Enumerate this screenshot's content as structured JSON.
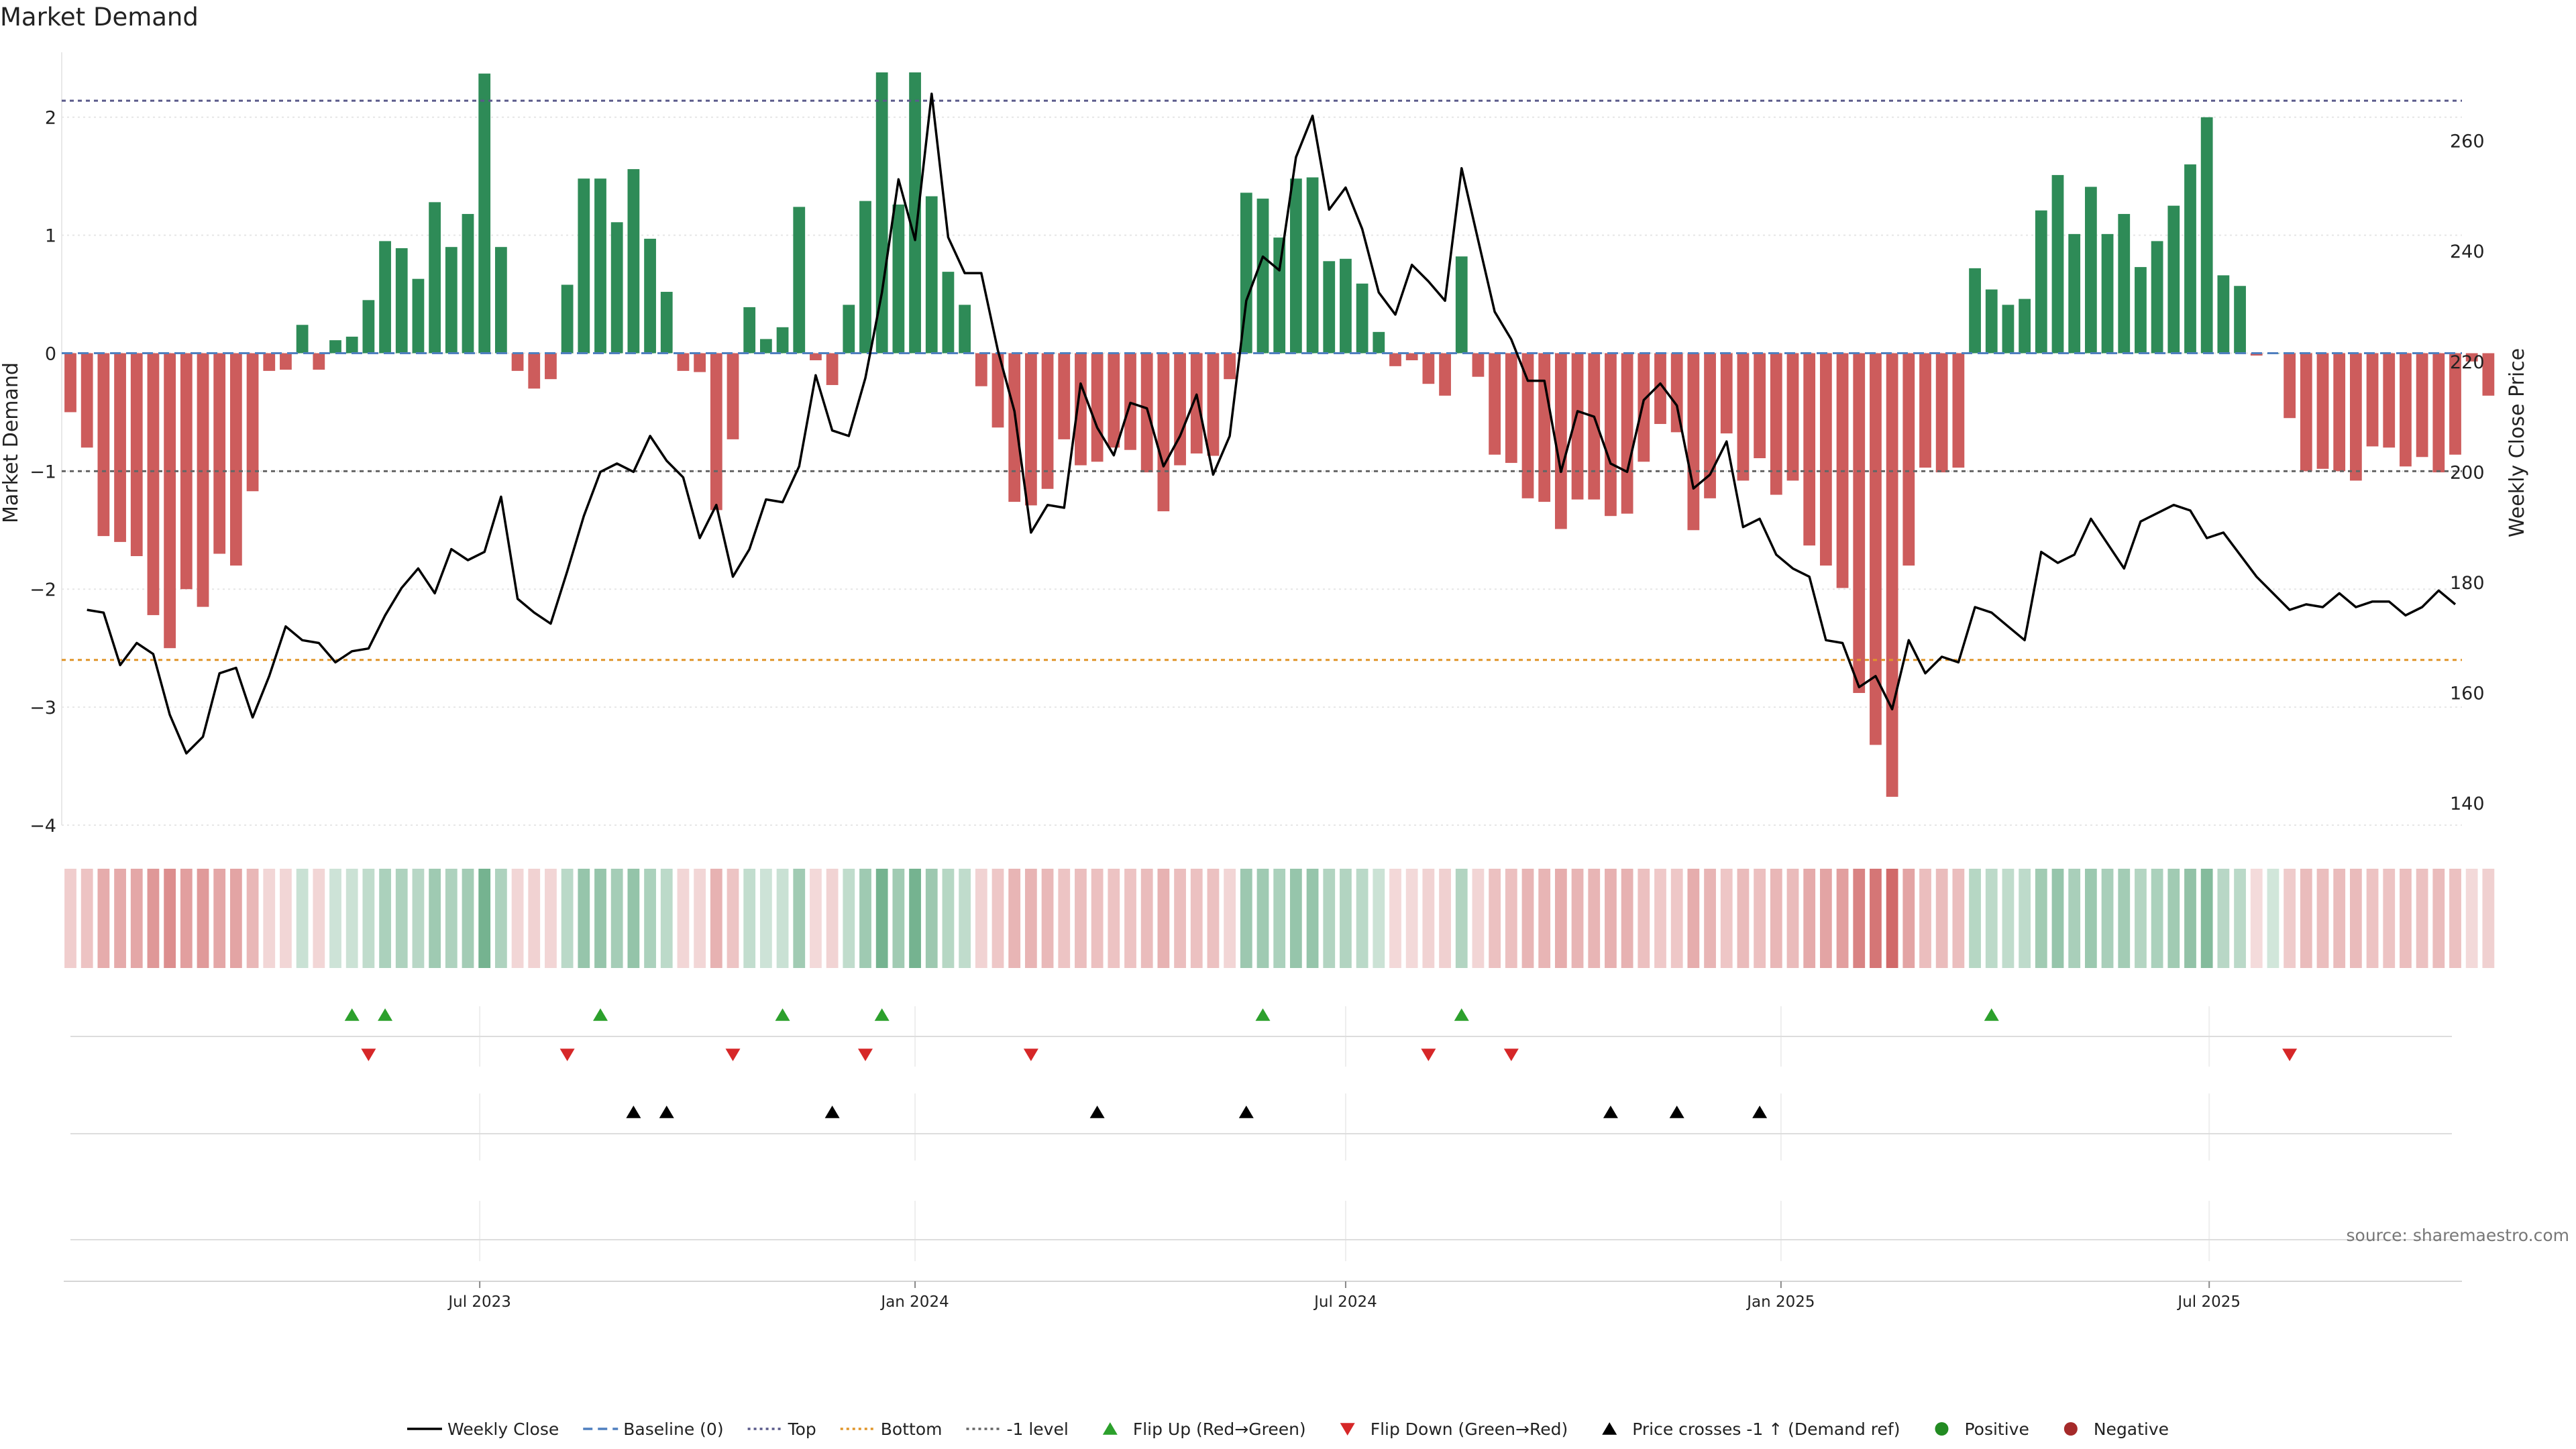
{
  "chart_data": {
    "type": "bar",
    "title": "Market Demand",
    "ylabel_left": "Market Demand",
    "ylabel_right": "Weekly Close Price",
    "source": "source: sharemaestro.com",
    "x_range": [
      "2023-01-09",
      "2025-10-13"
    ],
    "ylim_left": [
      -4.0,
      2.55
    ],
    "ylim_right": [
      136,
      276
    ],
    "left_ticks": [
      {
        "v": 2,
        "label": "2"
      },
      {
        "v": 1,
        "label": "1"
      },
      {
        "v": 0,
        "label": "0"
      },
      {
        "v": -1,
        "label": "−1"
      },
      {
        "v": -2,
        "label": "−2"
      },
      {
        "v": -3,
        "label": "−3"
      },
      {
        "v": -4,
        "label": "−4"
      }
    ],
    "right_ticks": [
      {
        "v": 260,
        "label": "260"
      },
      {
        "v": 240,
        "label": "240"
      },
      {
        "v": 220,
        "label": "220"
      },
      {
        "v": 200,
        "label": "200"
      },
      {
        "v": 180,
        "label": "180"
      },
      {
        "v": 160,
        "label": "160"
      },
      {
        "v": 140,
        "label": "140"
      }
    ],
    "x_ticks": [
      {
        "date": "2023-07-01",
        "label": "Jul 2023"
      },
      {
        "date": "2024-01-01",
        "label": "Jan 2024"
      },
      {
        "date": "2024-07-01",
        "label": "Jul 2024"
      },
      {
        "date": "2025-01-01",
        "label": "Jan 2025"
      },
      {
        "date": "2025-07-01",
        "label": "Jul 2025"
      }
    ],
    "reference_lines": [
      {
        "name": "Baseline (0)",
        "value": 0,
        "color": "#4f7fbf"
      },
      {
        "name": "Top",
        "value": 2.14,
        "color": "#5a5a8a"
      },
      {
        "name": "Bottom",
        "value": -2.6,
        "color": "#e0952a"
      },
      {
        "name": "-1 level",
        "value": -1,
        "color": "#666666"
      }
    ],
    "colors": {
      "positive": "#2e8b57",
      "negative": "#cd5c5c",
      "price": "#000000",
      "flip_up": "#2ca02c",
      "flip_down": "#d62728",
      "cross": "#000000",
      "positive_dot": "#228b22",
      "negative_dot": "#a52a2a"
    },
    "series": [
      {
        "name": "Weekly Close",
        "kind": "line",
        "axis": "right",
        "points": [
          [
            "2023-01-16",
            175
          ],
          [
            "2023-01-23",
            174.5
          ],
          [
            "2023-01-30",
            165
          ],
          [
            "2023-02-06",
            169
          ],
          [
            "2023-02-13",
            167
          ],
          [
            "2023-02-20",
            156
          ],
          [
            "2023-02-27",
            149
          ],
          [
            "2023-03-06",
            152
          ],
          [
            "2023-03-13",
            163.5
          ],
          [
            "2023-03-20",
            164.5
          ],
          [
            "2023-03-27",
            155.5
          ],
          [
            "2023-04-03",
            163
          ],
          [
            "2023-04-10",
            172
          ],
          [
            "2023-04-17",
            169.5
          ],
          [
            "2023-04-24",
            169
          ],
          [
            "2023-05-01",
            165.5
          ],
          [
            "2023-05-08",
            167.5
          ],
          [
            "2023-05-15",
            168
          ],
          [
            "2023-05-22",
            174
          ],
          [
            "2023-05-29",
            179
          ],
          [
            "2023-06-05",
            182.5
          ],
          [
            "2023-06-12",
            178
          ],
          [
            "2023-06-19",
            186
          ],
          [
            "2023-06-26",
            184
          ],
          [
            "2023-07-03",
            185.5
          ],
          [
            "2023-07-10",
            195.5
          ],
          [
            "2023-07-17",
            177
          ],
          [
            "2023-07-24",
            174.5
          ],
          [
            "2023-07-31",
            172.5
          ],
          [
            "2023-08-07",
            182
          ],
          [
            "2023-08-14",
            192
          ],
          [
            "2023-08-21",
            200
          ],
          [
            "2023-08-28",
            201.5
          ],
          [
            "2023-09-04",
            200
          ],
          [
            "2023-09-11",
            206.5
          ],
          [
            "2023-09-18",
            202
          ],
          [
            "2023-09-25",
            199
          ],
          [
            "2023-10-02",
            188
          ],
          [
            "2023-10-09",
            194
          ],
          [
            "2023-10-16",
            181
          ],
          [
            "2023-10-23",
            186
          ],
          [
            "2023-10-30",
            195
          ],
          [
            "2023-11-06",
            194.5
          ],
          [
            "2023-11-13",
            201
          ],
          [
            "2023-11-20",
            217.5
          ],
          [
            "2023-11-27",
            207.5
          ],
          [
            "2023-12-04",
            206.5
          ],
          [
            "2023-12-11",
            217
          ],
          [
            "2023-12-18",
            232.5
          ],
          [
            "2023-12-25",
            253
          ],
          [
            "2024-01-01",
            242
          ],
          [
            "2024-01-08",
            268.5
          ],
          [
            "2024-01-15",
            242.5
          ],
          [
            "2024-01-22",
            236
          ],
          [
            "2024-01-29",
            236
          ],
          [
            "2024-02-05",
            222
          ],
          [
            "2024-02-12",
            211
          ],
          [
            "2024-02-19",
            189
          ],
          [
            "2024-02-26",
            194
          ],
          [
            "2024-03-04",
            193.5
          ],
          [
            "2024-03-11",
            216
          ],
          [
            "2024-03-18",
            208
          ],
          [
            "2024-03-25",
            203
          ],
          [
            "2024-04-01",
            212.5
          ],
          [
            "2024-04-08",
            211.5
          ],
          [
            "2024-04-15",
            201
          ],
          [
            "2024-04-22",
            206.5
          ],
          [
            "2024-04-29",
            214
          ],
          [
            "2024-05-06",
            199.5
          ],
          [
            "2024-05-13",
            206.5
          ],
          [
            "2024-05-20",
            231
          ],
          [
            "2024-05-27",
            239
          ],
          [
            "2024-06-03",
            236.5
          ],
          [
            "2024-06-10",
            257
          ],
          [
            "2024-06-17",
            264.5
          ],
          [
            "2024-06-24",
            247.5
          ],
          [
            "2024-07-01",
            251.5
          ],
          [
            "2024-07-08",
            244
          ],
          [
            "2024-07-15",
            232.5
          ],
          [
            "2024-07-22",
            228.5
          ],
          [
            "2024-07-29",
            237.5
          ],
          [
            "2024-08-05",
            234.5
          ],
          [
            "2024-08-12",
            231
          ],
          [
            "2024-08-19",
            255
          ],
          [
            "2024-08-26",
            242
          ],
          [
            "2024-09-02",
            229
          ],
          [
            "2024-09-09",
            224
          ],
          [
            "2024-09-16",
            216.5
          ],
          [
            "2024-09-23",
            216.5
          ],
          [
            "2024-09-30",
            200
          ],
          [
            "2024-10-07",
            211
          ],
          [
            "2024-10-14",
            210
          ],
          [
            "2024-10-21",
            201.5
          ],
          [
            "2024-10-28",
            200
          ],
          [
            "2024-11-04",
            213
          ],
          [
            "2024-11-11",
            216
          ],
          [
            "2024-11-18",
            212
          ],
          [
            "2024-11-25",
            197
          ],
          [
            "2024-12-02",
            199.5
          ],
          [
            "2024-12-09",
            205.5
          ],
          [
            "2024-12-16",
            190
          ],
          [
            "2024-12-23",
            191.5
          ],
          [
            "2024-12-30",
            185
          ],
          [
            "2025-01-06",
            182.5
          ],
          [
            "2025-01-13",
            181
          ],
          [
            "2025-01-20",
            169.5
          ],
          [
            "2025-01-27",
            169
          ],
          [
            "2025-02-03",
            161
          ],
          [
            "2025-02-10",
            163
          ],
          [
            "2025-02-17",
            157
          ],
          [
            "2025-02-24",
            169.5
          ],
          [
            "2025-03-03",
            163.5
          ],
          [
            "2025-03-10",
            166.5
          ],
          [
            "2025-03-17",
            165.5
          ],
          [
            "2025-03-24",
            175.5
          ],
          [
            "2025-03-31",
            174.5
          ],
          [
            "2025-04-07",
            172
          ],
          [
            "2025-04-14",
            169.5
          ],
          [
            "2025-04-21",
            185.5
          ],
          [
            "2025-04-28",
            183.5
          ],
          [
            "2025-05-05",
            185
          ],
          [
            "2025-05-12",
            191.5
          ],
          [
            "2025-05-19",
            187
          ],
          [
            "2025-05-26",
            182.5
          ],
          [
            "2025-06-02",
            191
          ],
          [
            "2025-06-09",
            192.5
          ],
          [
            "2025-06-16",
            194
          ],
          [
            "2025-06-23",
            193
          ],
          [
            "2025-06-30",
            188
          ],
          [
            "2025-07-07",
            189
          ],
          [
            "2025-07-14",
            185
          ],
          [
            "2025-07-21",
            181
          ],
          [
            "2025-07-28",
            178
          ],
          [
            "2025-08-04",
            175
          ],
          [
            "2025-08-11",
            176
          ],
          [
            "2025-08-18",
            175.5
          ],
          [
            "2025-08-25",
            178
          ],
          [
            "2025-09-01",
            175.5
          ],
          [
            "2025-09-08",
            176.5
          ],
          [
            "2025-09-15",
            176.5
          ],
          [
            "2025-09-22",
            174
          ],
          [
            "2025-09-29",
            175.5
          ],
          [
            "2025-10-06",
            178.5
          ],
          [
            "2025-10-13",
            176
          ]
        ]
      },
      {
        "name": "Market Demand",
        "kind": "bar",
        "axis": "left",
        "start": "2023-01-09",
        "step_days": 7,
        "values": [
          -0.5,
          -0.8,
          -1.55,
          -1.6,
          -1.72,
          -2.22,
          -2.5,
          -2.0,
          -2.15,
          -1.7,
          -1.8,
          -1.17,
          -0.15,
          -0.14,
          0.24,
          -0.14,
          0.11,
          0.14,
          0.45,
          0.95,
          0.89,
          0.63,
          1.28,
          0.9,
          1.18,
          2.37,
          0.9,
          -0.15,
          -0.3,
          -0.22,
          0.58,
          1.48,
          1.48,
          1.11,
          1.56,
          0.97,
          0.52,
          -0.15,
          -0.16,
          -1.33,
          -0.73,
          0.39,
          0.12,
          0.22,
          1.24,
          -0.06,
          -0.27,
          0.41,
          1.29,
          2.38,
          1.26,
          2.38,
          1.33,
          0.69,
          0.41,
          -0.28,
          -0.63,
          -1.26,
          -1.29,
          -1.15,
          -0.73,
          -0.95,
          -0.92,
          -0.8,
          -0.82,
          -1.01,
          -1.34,
          -0.95,
          -0.85,
          -0.87,
          -0.22,
          1.36,
          1.31,
          0.98,
          1.48,
          1.49,
          0.78,
          0.8,
          0.59,
          0.18,
          -0.11,
          -0.06,
          -0.26,
          -0.36,
          0.82,
          -0.2,
          -0.86,
          -0.93,
          -1.23,
          -1.26,
          -1.49,
          -1.24,
          -1.24,
          -1.38,
          -1.36,
          -0.92,
          -0.6,
          -0.67,
          -1.5,
          -1.23,
          -0.68,
          -1.08,
          -0.89,
          -1.2,
          -1.08,
          -1.63,
          -1.8,
          -1.99,
          -2.88,
          -3.32,
          -3.76,
          -1.8,
          -0.97,
          -1.01,
          -0.97,
          0.72,
          0.54,
          0.41,
          0.46,
          1.21,
          1.51,
          1.01,
          1.41,
          1.01,
          1.18,
          0.73,
          0.95,
          1.25,
          1.6,
          2.0,
          0.66,
          0.57,
          -0.02,
          0.0,
          -0.55,
          -1.0,
          -0.98,
          -1.0,
          -1.08,
          -0.79,
          -0.8,
          -0.96,
          -0.88,
          -1.01,
          -0.86,
          -0.07,
          -0.36
        ]
      }
    ],
    "flip_up": [
      "2023-05-08",
      "2023-05-22",
      "2023-08-21",
      "2023-11-06",
      "2023-12-18",
      "2024-05-27",
      "2024-08-19",
      "2025-03-31"
    ],
    "flip_down": [
      "2023-05-15",
      "2023-08-07",
      "2023-10-16",
      "2023-12-11",
      "2024-02-19",
      "2024-08-05",
      "2024-09-09",
      "2025-08-04"
    ],
    "price_crosses": [
      "2023-09-04",
      "2023-09-18",
      "2023-11-27",
      "2024-03-18",
      "2024-05-20",
      "2024-10-21",
      "2024-11-18",
      "2024-12-23"
    ],
    "legend": [
      {
        "label": "Weekly Close",
        "kind": "line-solid",
        "color": "#000000"
      },
      {
        "label": "Baseline (0)",
        "kind": "line-dash",
        "color": "#4f7fbf"
      },
      {
        "label": "Top",
        "kind": "line-dot",
        "color": "#5a5a8a"
      },
      {
        "label": "Bottom",
        "kind": "line-dot",
        "color": "#e0952a"
      },
      {
        "label": "-1 level",
        "kind": "line-dot",
        "color": "#666666"
      },
      {
        "label": "Flip Up (Red→Green)",
        "kind": "tri-up",
        "color": "#2ca02c"
      },
      {
        "label": "Flip Down (Green→Red)",
        "kind": "tri-down",
        "color": "#d62728"
      },
      {
        "label": "Price crosses -1 ↑ (Demand ref)",
        "kind": "tri-up",
        "color": "#000000"
      },
      {
        "label": "Positive",
        "kind": "dot",
        "color": "#228b22"
      },
      {
        "label": "Negative",
        "kind": "dot",
        "color": "#a52a2a"
      }
    ]
  }
}
